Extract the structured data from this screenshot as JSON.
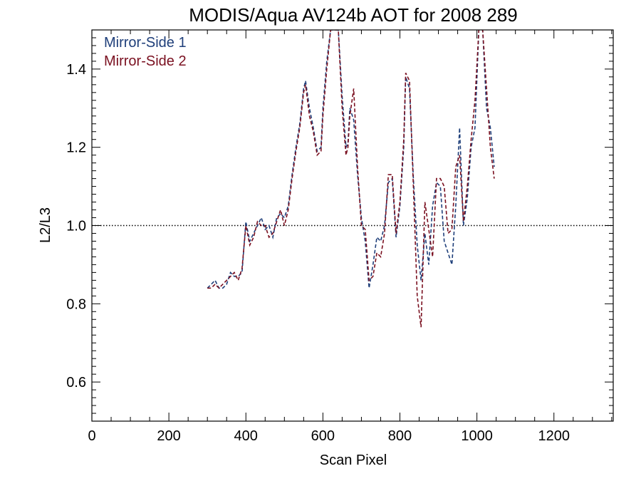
{
  "chart_data": {
    "type": "line",
    "title": "MODIS/Aqua AV124b AOT for 2008 289",
    "xlabel": "Scan Pixel",
    "ylabel": "L2/L3",
    "xlim": [
      0,
      1354
    ],
    "ylim": [
      0.5,
      1.5
    ],
    "x_ticks": [
      "0",
      "200",
      "400",
      "600",
      "800",
      "1000",
      "1200"
    ],
    "y_ticks": [
      "0.6",
      "0.8",
      "1.0",
      "1.2",
      "1.4"
    ],
    "reference_line": {
      "y": 1.0,
      "style": "dotted"
    },
    "legend": {
      "position": "top-left"
    },
    "series": [
      {
        "name": "Mirror-Side 1",
        "color": "#1f3f7a",
        "style": "dashed",
        "points": [
          [
            300,
            0.84
          ],
          [
            310,
            0.85
          ],
          [
            320,
            0.86
          ],
          [
            330,
            0.84
          ],
          [
            340,
            0.84
          ],
          [
            350,
            0.85
          ],
          [
            360,
            0.88
          ],
          [
            370,
            0.87
          ],
          [
            380,
            0.87
          ],
          [
            390,
            0.88
          ],
          [
            400,
            1.01
          ],
          [
            410,
            0.96
          ],
          [
            420,
            0.98
          ],
          [
            430,
            1.0
          ],
          [
            440,
            1.02
          ],
          [
            450,
            0.99
          ],
          [
            460,
            1.0
          ],
          [
            470,
            0.97
          ],
          [
            480,
            1.02
          ],
          [
            490,
            1.03
          ],
          [
            500,
            1.02
          ],
          [
            510,
            1.05
          ],
          [
            520,
            1.13
          ],
          [
            530,
            1.2
          ],
          [
            540,
            1.26
          ],
          [
            550,
            1.35
          ],
          [
            555,
            1.37
          ],
          [
            565,
            1.3
          ],
          [
            575,
            1.25
          ],
          [
            585,
            1.19
          ],
          [
            595,
            1.2
          ],
          [
            600,
            1.3
          ],
          [
            610,
            1.42
          ],
          [
            620,
            1.5
          ],
          [
            640,
            1.5
          ],
          [
            650,
            1.33
          ],
          [
            660,
            1.2
          ],
          [
            665,
            1.21
          ],
          [
            670,
            1.3
          ],
          [
            680,
            1.27
          ],
          [
            690,
            1.13
          ],
          [
            700,
            1.02
          ],
          [
            710,
            0.96
          ],
          [
            720,
            0.84
          ],
          [
            730,
            0.9
          ],
          [
            740,
            0.97
          ],
          [
            750,
            0.96
          ],
          [
            760,
            1.0
          ],
          [
            770,
            1.11
          ],
          [
            780,
            1.12
          ],
          [
            790,
            0.97
          ],
          [
            800,
            1.05
          ],
          [
            810,
            1.2
          ],
          [
            815,
            1.38
          ],
          [
            825,
            1.35
          ],
          [
            835,
            1.12
          ],
          [
            845,
            0.95
          ],
          [
            855,
            0.86
          ],
          [
            865,
            0.98
          ],
          [
            875,
            0.9
          ],
          [
            885,
            1.05
          ],
          [
            895,
            1.11
          ],
          [
            905,
            1.1
          ],
          [
            915,
            0.96
          ],
          [
            925,
            0.93
          ],
          [
            935,
            0.9
          ],
          [
            945,
            1.05
          ],
          [
            955,
            1.25
          ],
          [
            965,
            1.0
          ],
          [
            975,
            1.07
          ],
          [
            985,
            1.2
          ],
          [
            995,
            1.25
          ],
          [
            1005,
            1.5
          ],
          [
            1015,
            1.5
          ],
          [
            1025,
            1.3
          ],
          [
            1035,
            1.25
          ],
          [
            1045,
            1.15
          ]
        ]
      },
      {
        "name": "Mirror-Side 2",
        "color": "#7a1020",
        "style": "dashed",
        "points": [
          [
            300,
            0.84
          ],
          [
            310,
            0.84
          ],
          [
            320,
            0.85
          ],
          [
            330,
            0.84
          ],
          [
            340,
            0.85
          ],
          [
            350,
            0.86
          ],
          [
            360,
            0.87
          ],
          [
            370,
            0.88
          ],
          [
            380,
            0.86
          ],
          [
            390,
            0.89
          ],
          [
            400,
            1.0
          ],
          [
            410,
            0.95
          ],
          [
            420,
            0.97
          ],
          [
            430,
            1.01
          ],
          [
            440,
            1.0
          ],
          [
            450,
            1.0
          ],
          [
            460,
            0.97
          ],
          [
            470,
            0.98
          ],
          [
            480,
            1.01
          ],
          [
            490,
            1.04
          ],
          [
            500,
            1.0
          ],
          [
            510,
            1.04
          ],
          [
            520,
            1.12
          ],
          [
            530,
            1.19
          ],
          [
            540,
            1.25
          ],
          [
            550,
            1.34
          ],
          [
            555,
            1.36
          ],
          [
            565,
            1.28
          ],
          [
            575,
            1.24
          ],
          [
            585,
            1.18
          ],
          [
            595,
            1.19
          ],
          [
            600,
            1.28
          ],
          [
            610,
            1.4
          ],
          [
            620,
            1.5
          ],
          [
            640,
            1.5
          ],
          [
            650,
            1.3
          ],
          [
            660,
            1.18
          ],
          [
            665,
            1.2
          ],
          [
            670,
            1.28
          ],
          [
            680,
            1.35
          ],
          [
            690,
            1.15
          ],
          [
            700,
            1.0
          ],
          [
            710,
            0.99
          ],
          [
            720,
            0.86
          ],
          [
            730,
            0.87
          ],
          [
            740,
            0.93
          ],
          [
            750,
            0.92
          ],
          [
            760,
            0.98
          ],
          [
            770,
            1.13
          ],
          [
            780,
            1.13
          ],
          [
            790,
            0.98
          ],
          [
            800,
            1.06
          ],
          [
            810,
            1.22
          ],
          [
            815,
            1.39
          ],
          [
            825,
            1.37
          ],
          [
            835,
            1.1
          ],
          [
            845,
            0.82
          ],
          [
            855,
            0.74
          ],
          [
            865,
            1.06
          ],
          [
            875,
            0.99
          ],
          [
            885,
            0.92
          ],
          [
            895,
            1.12
          ],
          [
            905,
            1.12
          ],
          [
            915,
            1.1
          ],
          [
            925,
            0.98
          ],
          [
            935,
            0.99
          ],
          [
            945,
            1.15
          ],
          [
            955,
            1.18
          ],
          [
            965,
            1.01
          ],
          [
            975,
            1.1
          ],
          [
            985,
            1.22
          ],
          [
            995,
            1.32
          ],
          [
            1005,
            1.5
          ],
          [
            1015,
            1.5
          ],
          [
            1025,
            1.35
          ],
          [
            1035,
            1.2
          ],
          [
            1045,
            1.12
          ]
        ]
      }
    ]
  }
}
